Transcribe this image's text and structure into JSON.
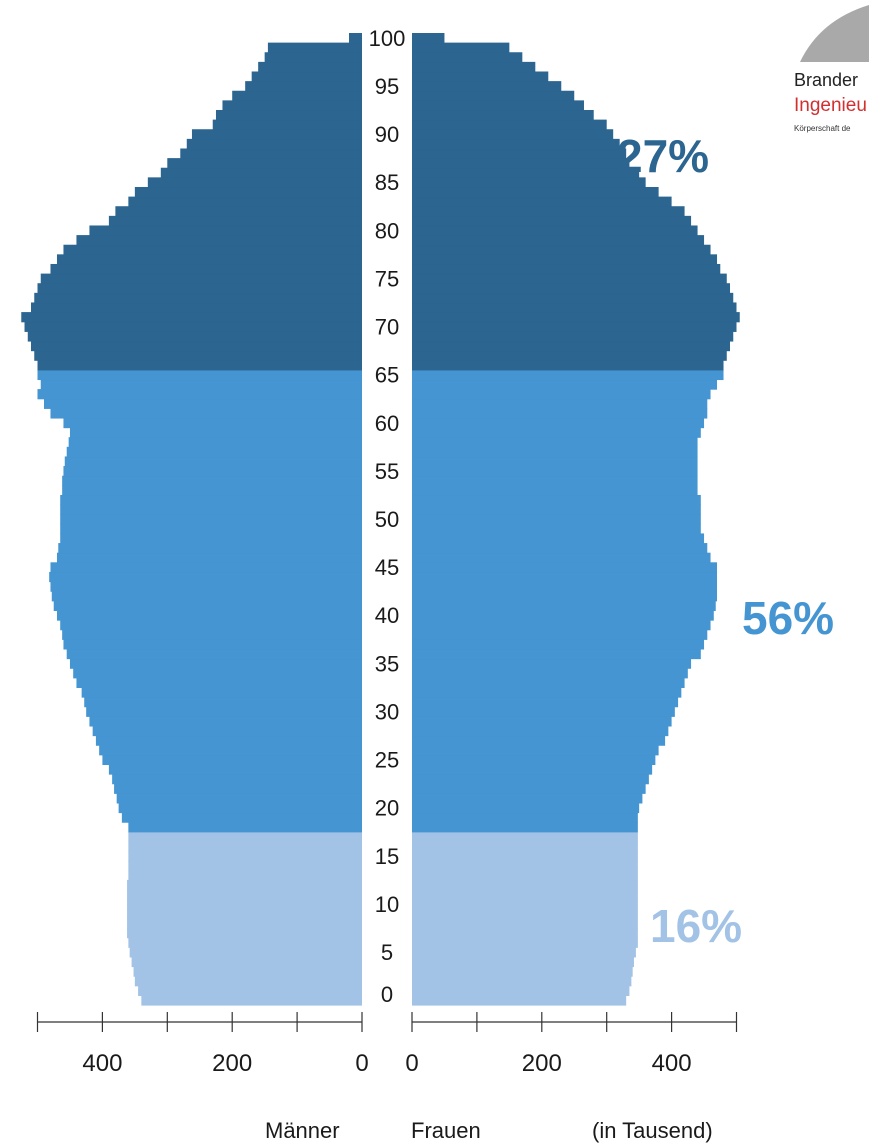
{
  "logo": {
    "line1": "Brander",
    "line2": "Ingenieu",
    "line3": "Körperschaft de"
  },
  "chart_data": {
    "type": "population-pyramid",
    "y_axis": {
      "label": "",
      "tick_labels": [
        "0",
        "5",
        "10",
        "15",
        "20",
        "25",
        "30",
        "35",
        "40",
        "45",
        "50",
        "55",
        "60",
        "65",
        "70",
        "75",
        "80",
        "85",
        "90",
        "95",
        "100"
      ]
    },
    "x_axis": {
      "left_tick_labels": [
        "400",
        "200",
        "0"
      ],
      "right_tick_labels": [
        "0",
        "200",
        "400"
      ],
      "unit": "(in Tausend)",
      "range": [
        0,
        500
      ]
    },
    "legend": {
      "left_label": "Männer",
      "right_label": "Frauen"
    },
    "age_groups": [
      {
        "name": "0-17",
        "from": 0,
        "to": 17,
        "share": "16%",
        "color": "#a2c2e6"
      },
      {
        "name": "18-65",
        "from": 18,
        "to": 65,
        "share": "56%",
        "color": "#4495d1"
      },
      {
        "name": "66-100",
        "from": 66,
        "to": 100,
        "share": "27%",
        "color": "#2b6590"
      }
    ],
    "series": [
      {
        "name": "Männer",
        "values": [
          340,
          345,
          350,
          352,
          355,
          358,
          360,
          362,
          362,
          362,
          362,
          362,
          362,
          360,
          360,
          360,
          360,
          360,
          360,
          370,
          375,
          378,
          382,
          385,
          390,
          400,
          405,
          410,
          415,
          420,
          425,
          428,
          432,
          440,
          445,
          450,
          455,
          460,
          462,
          465,
          470,
          475,
          478,
          480,
          482,
          480,
          470,
          468,
          465,
          465,
          465,
          465,
          465,
          462,
          462,
          460,
          458,
          455,
          452,
          450,
          460,
          480,
          490,
          500,
          495,
          500,
          500,
          505,
          510,
          515,
          520,
          525,
          510,
          505,
          500,
          495,
          480,
          470,
          460,
          440,
          420,
          390,
          380,
          360,
          350,
          330,
          310,
          300,
          280,
          270,
          262,
          230,
          225,
          215,
          200,
          180,
          170,
          160,
          150,
          145,
          20
        ]
      },
      {
        "name": "Frauen",
        "values": [
          330,
          335,
          338,
          340,
          342,
          345,
          348,
          348,
          348,
          348,
          348,
          348,
          348,
          348,
          348,
          348,
          348,
          348,
          348,
          348,
          350,
          355,
          360,
          365,
          370,
          375,
          380,
          390,
          395,
          400,
          405,
          410,
          415,
          420,
          425,
          430,
          445,
          450,
          455,
          460,
          465,
          468,
          470,
          470,
          470,
          470,
          460,
          455,
          450,
          445,
          445,
          445,
          445,
          440,
          440,
          440,
          440,
          440,
          440,
          445,
          450,
          455,
          455,
          460,
          470,
          480,
          480,
          485,
          490,
          495,
          500,
          505,
          500,
          495,
          490,
          485,
          475,
          470,
          460,
          450,
          440,
          430,
          420,
          400,
          380,
          360,
          350,
          335,
          330,
          320,
          310,
          300,
          280,
          265,
          250,
          230,
          210,
          190,
          170,
          150,
          50
        ]
      }
    ]
  }
}
